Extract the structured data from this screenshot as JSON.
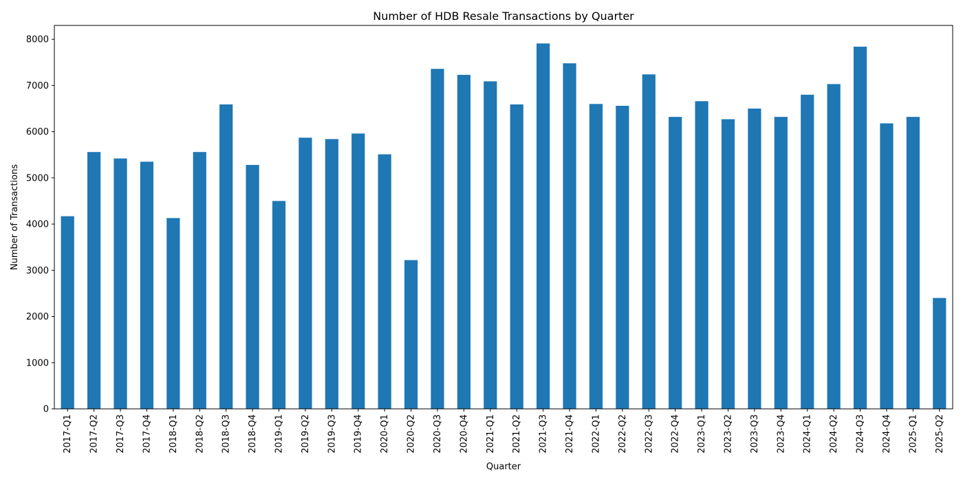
{
  "chart_data": {
    "type": "bar",
    "title": "Number of HDB Resale Transactions by Quarter",
    "xlabel": "Quarter",
    "ylabel": "Number of Transactions",
    "ylim": [
      0,
      8300
    ],
    "yticks": [
      "0",
      "1000",
      "2000",
      "3000",
      "4000",
      "5000",
      "6000",
      "7000",
      "8000"
    ],
    "grid": false,
    "legend": "none",
    "bar_color": "#1f77b4",
    "categories": [
      "2017-Q1",
      "2017-Q2",
      "2017-Q3",
      "2017-Q4",
      "2018-Q1",
      "2018-Q2",
      "2018-Q3",
      "2018-Q4",
      "2019-Q1",
      "2019-Q2",
      "2019-Q3",
      "2019-Q4",
      "2020-Q1",
      "2020-Q2",
      "2020-Q3",
      "2020-Q4",
      "2021-Q1",
      "2021-Q2",
      "2021-Q3",
      "2021-Q4",
      "2022-Q1",
      "2022-Q2",
      "2022-Q3",
      "2022-Q4",
      "2023-Q1",
      "2023-Q2",
      "2023-Q3",
      "2023-Q4",
      "2024-Q1",
      "2024-Q2",
      "2024-Q3",
      "2024-Q4",
      "2025-Q1",
      "2025-Q2"
    ],
    "values": [
      4170,
      5560,
      5420,
      5350,
      4130,
      5560,
      6590,
      5280,
      4500,
      5870,
      5840,
      5960,
      5510,
      3220,
      7360,
      7230,
      7090,
      6590,
      7910,
      7480,
      6600,
      6560,
      7240,
      6320,
      6660,
      6270,
      6500,
      6320,
      6800,
      7030,
      7840,
      6180,
      6320,
      2400
    ]
  }
}
